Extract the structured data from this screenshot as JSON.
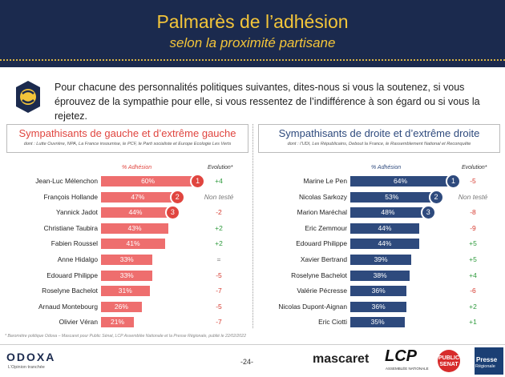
{
  "header": {
    "title": "Palmarès de l’adhésion",
    "subtitle": "selon la proximité partisane"
  },
  "question": "Pour chacune des personnalités politiques suivantes, dites-nous si vous la soutenez, si vous éprouvez de la sympathie pour elle, si vous ressentez de l’indifférence à son égard ou si vous la rejetez.",
  "colors": {
    "header_bg": "#1b2a4e",
    "title": "#f3c53a",
    "left_bar": "#ee6e6e",
    "left_accent": "#e0453f",
    "right_bar": "#2e4a7d",
    "right_accent": "#2e4a7d",
    "positive": "#2e9a3c",
    "negative": "#d63a2f",
    "neutral": "#777777"
  },
  "chart_data": [
    {
      "type": "bar",
      "orientation": "horizontal",
      "title": "Sympathisants de gauche et d’extrême gauche",
      "subtitle": "dont : Lutte Ouvrière, NPA, La France insoumise, le PCF, le Parti socialiste et Europe Ecologie Les Verts",
      "value_label": "% Adhésion",
      "evolution_label": "Evolution",
      "evolution_mark": "*",
      "categories": [
        "Jean-Luc Mélenchon",
        "François Hollande",
        "Yannick Jadot",
        "Christiane Taubira",
        "Fabien Roussel",
        "Anne Hidalgo",
        "Edouard Philippe",
        "Roselyne Bachelot",
        "Arnaud Montebourg",
        "Olivier Véran"
      ],
      "values": [
        60,
        47,
        44,
        43,
        41,
        33,
        33,
        31,
        26,
        21
      ],
      "value_labels": [
        "60%",
        "47%",
        "44%",
        "43%",
        "41%",
        "33%",
        "33%",
        "31%",
        "26%",
        "21%"
      ],
      "ranks": [
        "1",
        "2",
        "3"
      ],
      "evolution": [
        "+4",
        "Non testé",
        "-2",
        "+2",
        "+2",
        "=",
        "-5",
        "-7",
        "-5",
        "-7"
      ]
    },
    {
      "type": "bar",
      "orientation": "horizontal",
      "title": "Sympathisants de droite et d’extrême droite",
      "subtitle": "dont : l’UDI, Les Républicains, Debout la France, le Rassemblement National et Reconquête",
      "value_label": "% Adhésion",
      "evolution_label": "Evolution",
      "evolution_mark": "*",
      "categories": [
        "Marine Le Pen",
        "Nicolas Sarkozy",
        "Marion Maréchal",
        "Eric Zemmour",
        "Edouard Philippe",
        "Xavier Bertrand",
        "Roselyne Bachelot",
        "Valérie Pécresse",
        "Nicolas Dupont-Aignan",
        "Eric Ciotti"
      ],
      "values": [
        64,
        53,
        48,
        44,
        44,
        39,
        38,
        36,
        36,
        35
      ],
      "value_labels": [
        "64%",
        "53%",
        "48%",
        "44%",
        "44%",
        "39%",
        "38%",
        "36%",
        "36%",
        "35%"
      ],
      "ranks": [
        "1",
        "2",
        "3"
      ],
      "evolution": [
        "-5",
        "Non testé",
        "-8",
        "-9",
        "+5",
        "+5",
        "+4",
        "-6",
        "+2",
        "+1"
      ]
    }
  ],
  "footnote": "* Baromètre politique Odoxa – Mascaret pour Public Sénat, LCP Assemblée Nationale et la Presse Régionale, publié le 22/02/2022",
  "footer": {
    "brand": "ODOXA",
    "tagline": "L’Opinion tranchée",
    "page": "-24-",
    "partner1": "mascaret",
    "partner2": "LCP",
    "partner2_sub": "ASSEMBLÉE NATIONALE",
    "partner3": "PUBLIC SENAT",
    "partner4_line1": "Presse",
    "partner4_line2": "Régionale"
  }
}
